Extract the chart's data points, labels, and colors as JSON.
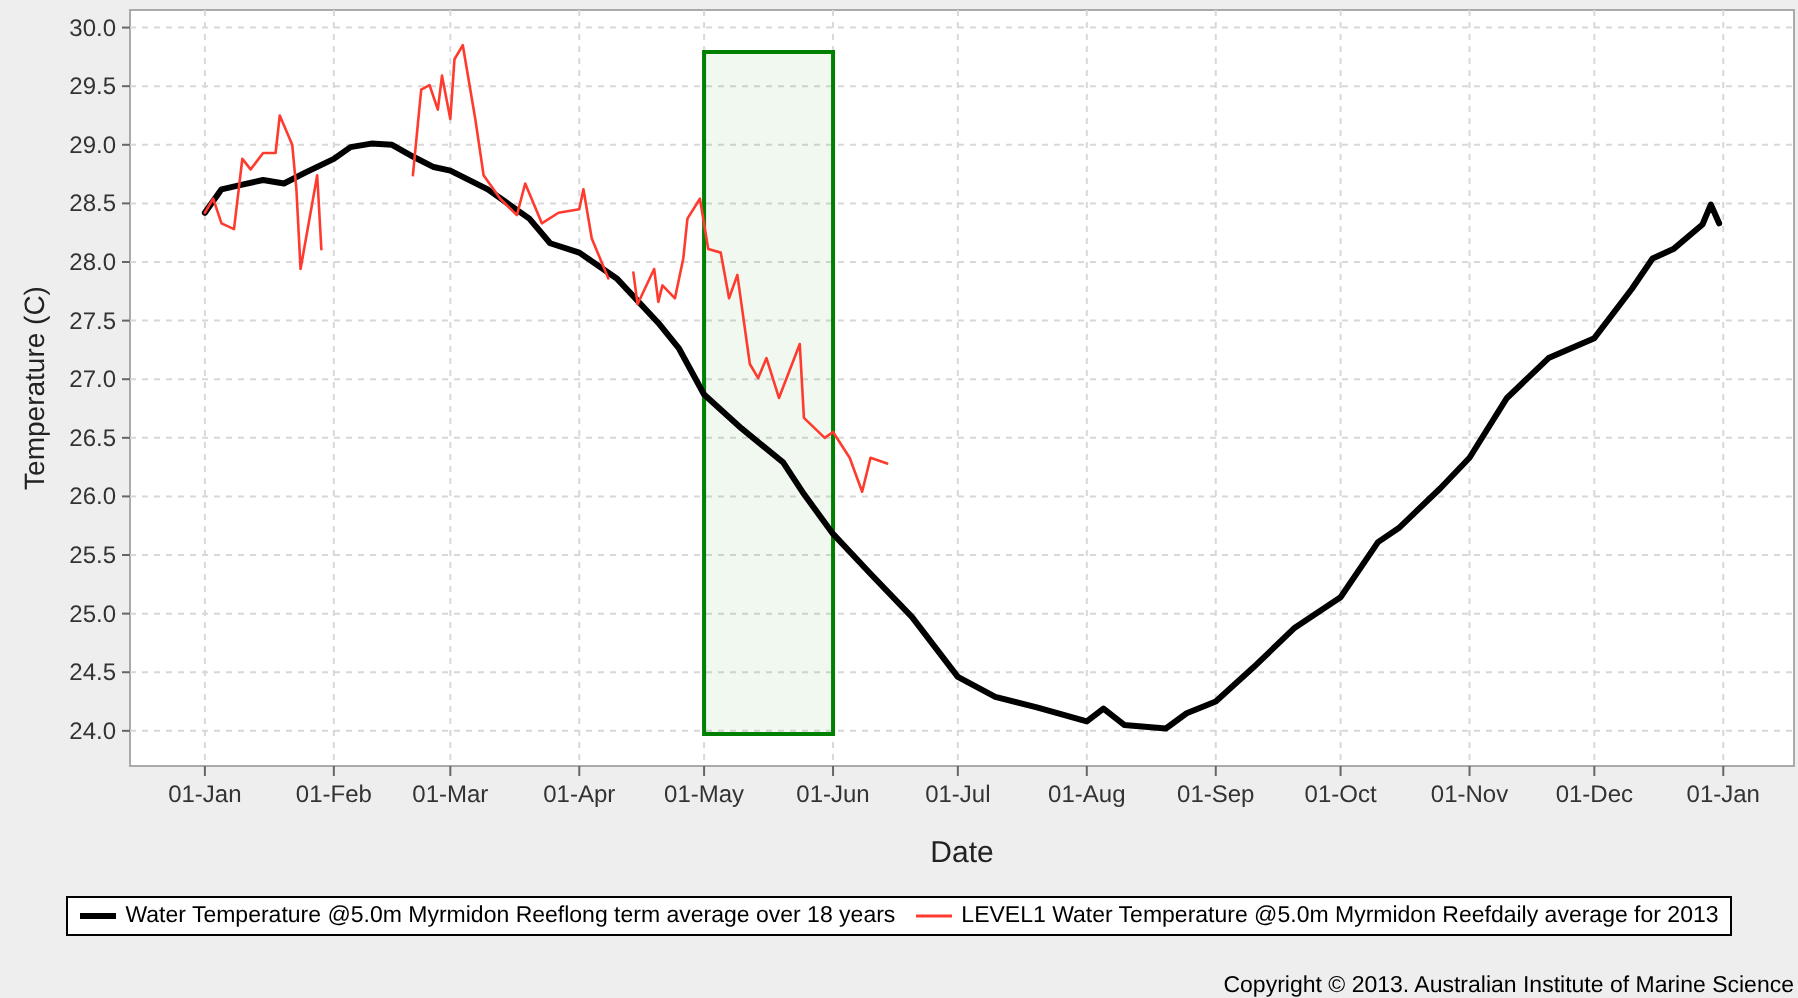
{
  "chart_data": {
    "type": "line",
    "xlabel": "Date",
    "ylabel": "Temperature (C)",
    "xlim": [
      "2012-12-14",
      "2014-01-18"
    ],
    "ylim": [
      23.7,
      30.15
    ],
    "xticks": [
      {
        "value": "2013-01-01",
        "label": "01-Jan"
      },
      {
        "value": "2013-02-01",
        "label": "01-Feb"
      },
      {
        "value": "2013-03-01",
        "label": "01-Mar"
      },
      {
        "value": "2013-04-01",
        "label": "01-Apr"
      },
      {
        "value": "2013-05-01",
        "label": "01-May"
      },
      {
        "value": "2013-06-01",
        "label": "01-Jun"
      },
      {
        "value": "2013-07-01",
        "label": "01-Jul"
      },
      {
        "value": "2013-08-01",
        "label": "01-Aug"
      },
      {
        "value": "2013-09-01",
        "label": "01-Sep"
      },
      {
        "value": "2013-10-01",
        "label": "01-Oct"
      },
      {
        "value": "2013-11-01",
        "label": "01-Nov"
      },
      {
        "value": "2013-12-01",
        "label": "01-Dec"
      },
      {
        "value": "2014-01-01",
        "label": "01-Jan"
      }
    ],
    "yticks": [
      {
        "value": 24,
        "label": "24.0"
      },
      {
        "value": 24.5,
        "label": "24.5"
      },
      {
        "value": 25,
        "label": "25.0"
      },
      {
        "value": 25.5,
        "label": "25.5"
      },
      {
        "value": 26,
        "label": "26.0"
      },
      {
        "value": 26.5,
        "label": "26.5"
      },
      {
        "value": 27,
        "label": "27.0"
      },
      {
        "value": 27.5,
        "label": "27.5"
      },
      {
        "value": 28,
        "label": "28.0"
      },
      {
        "value": 28.5,
        "label": "28.5"
      },
      {
        "value": 29,
        "label": "29.0"
      },
      {
        "value": 29.5,
        "label": "29.5"
      },
      {
        "value": 30,
        "label": "30.0"
      }
    ],
    "grid": true,
    "legend": "bottom",
    "line_style": "solid",
    "marker": "none",
    "bands": [
      {
        "axis": "x",
        "from": "2013-05-01",
        "to": "2013-06-01",
        "color": "#008000"
      }
    ],
    "annotations": [
      "Copyright © 2013. Australian Institute of Marine Science"
    ],
    "series": [
      {
        "name": "Water Temperature @5.0m Myrmidon Reeflong term average over 18 years",
        "color": "#000000",
        "x": [
          "2013-01-01",
          "2013-01-05",
          "2013-01-10",
          "2013-01-15",
          "2013-01-20",
          "2013-01-25",
          "2013-02-01",
          "2013-02-05",
          "2013-02-10",
          "2013-02-15",
          "2013-02-20",
          "2013-02-25",
          "2013-03-01",
          "2013-03-10",
          "2013-03-20",
          "2013-03-25",
          "2013-04-01",
          "2013-04-10",
          "2013-04-20",
          "2013-04-25",
          "2013-05-01",
          "2013-05-10",
          "2013-05-20",
          "2013-05-25",
          "2013-06-01",
          "2013-06-10",
          "2013-06-20",
          "2013-07-01",
          "2013-07-10",
          "2013-07-20",
          "2013-08-01",
          "2013-08-05",
          "2013-08-10",
          "2013-08-20",
          "2013-08-25",
          "2013-09-01",
          "2013-09-10",
          "2013-09-20",
          "2013-10-01",
          "2013-10-10",
          "2013-10-15",
          "2013-10-25",
          "2013-11-01",
          "2013-11-10",
          "2013-11-20",
          "2013-12-01",
          "2013-12-10",
          "2013-12-15",
          "2013-12-20",
          "2013-12-27",
          "2013-12-29",
          "2013-12-31"
        ],
        "values": [
          28.42,
          28.62,
          28.66,
          28.7,
          28.67,
          28.76,
          28.88,
          28.98,
          29.01,
          29.0,
          28.9,
          28.81,
          28.78,
          28.62,
          28.37,
          28.16,
          28.08,
          27.86,
          27.48,
          27.26,
          26.87,
          26.58,
          26.29,
          26.02,
          25.68,
          25.34,
          24.97,
          24.46,
          24.29,
          24.2,
          24.08,
          24.19,
          24.05,
          24.02,
          24.15,
          24.25,
          24.54,
          24.88,
          25.14,
          25.61,
          25.73,
          26.07,
          26.33,
          26.84,
          27.18,
          27.35,
          27.77,
          28.03,
          28.11,
          28.32,
          28.49,
          28.33
        ]
      },
      {
        "name": "LEVEL1 Water Temperature @5.0m Myrmidon Reefdaily average for 2013",
        "color": "#ff3b2f",
        "x": [
          "2013-01-01",
          "2013-01-03",
          "2013-01-05",
          "2013-01-08",
          "2013-01-10",
          "2013-01-12",
          "2013-01-15",
          "2013-01-18",
          "2013-01-19",
          "2013-01-22",
          "2013-01-23",
          "2013-01-24",
          "2013-01-28",
          "2013-01-29",
          "2013-02-10",
          "2013-02-20",
          "2013-02-22",
          "2013-02-24",
          "2013-02-26",
          "2013-02-27",
          "2013-03-01",
          "2013-03-02",
          "2013-03-04",
          "2013-03-07",
          "2013-03-09",
          "2013-03-13",
          "2013-03-17",
          "2013-03-19",
          "2013-03-23",
          "2013-03-27",
          "2013-04-01",
          "2013-04-02",
          "2013-04-04",
          "2013-04-08",
          "2013-04-11",
          "2013-04-14",
          "2013-04-15",
          "2013-04-19",
          "2013-04-20",
          "2013-04-21",
          "2013-04-24",
          "2013-04-26",
          "2013-04-27",
          "2013-04-30",
          "2013-05-02",
          "2013-05-05",
          "2013-05-07",
          "2013-05-09",
          "2013-05-12",
          "2013-05-14",
          "2013-05-16",
          "2013-05-19",
          "2013-05-24",
          "2013-05-25",
          "2013-05-30",
          "2013-06-01",
          "2013-06-05",
          "2013-06-08",
          "2013-06-10",
          "2013-06-14"
        ],
        "values": [
          28.42,
          28.54,
          28.33,
          28.28,
          28.88,
          28.79,
          28.93,
          28.93,
          29.25,
          29.0,
          28.62,
          27.94,
          28.74,
          28.11,
          null,
          28.74,
          29.47,
          29.51,
          29.3,
          29.59,
          29.22,
          29.73,
          29.85,
          29.22,
          28.74,
          28.54,
          28.4,
          28.67,
          28.33,
          28.42,
          28.45,
          28.62,
          28.2,
          27.86,
          null,
          27.91,
          27.64,
          27.94,
          27.66,
          27.8,
          27.69,
          28.03,
          28.37,
          28.54,
          28.11,
          28.08,
          27.69,
          27.89,
          27.13,
          27.01,
          27.18,
          26.84,
          27.3,
          26.67,
          26.5,
          26.55,
          26.33,
          26.04,
          26.33,
          26.28
        ]
      }
    ]
  }
}
